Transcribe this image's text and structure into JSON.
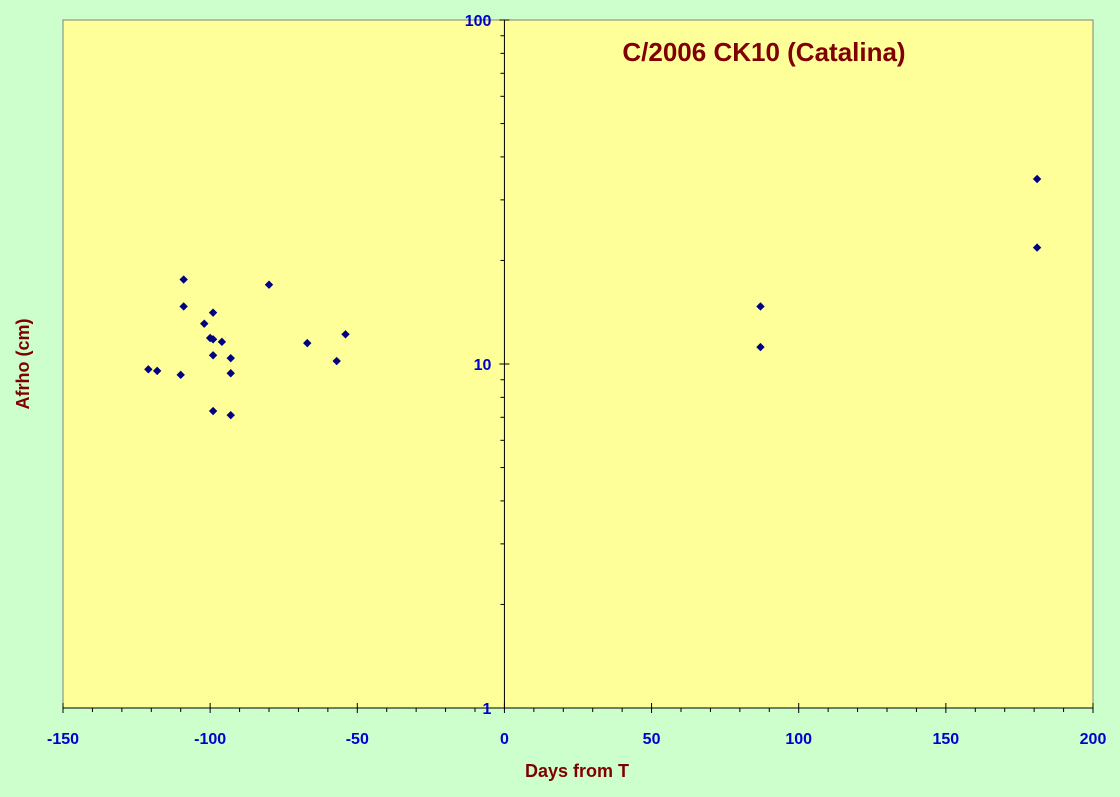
{
  "chart_data": {
    "type": "scatter",
    "title": "C/2006 CK10 (Catalina)",
    "xlabel": "Days from T",
    "ylabel": "Afrho (cm)",
    "xlim": [
      -150,
      200
    ],
    "ylim": [
      1,
      100
    ],
    "y_scale": "log",
    "x_ticks": [
      "-150",
      "-100",
      "-50",
      "0",
      "50",
      "100",
      "150",
      "200"
    ],
    "y_ticks": [
      "1",
      "10",
      "100"
    ],
    "grid": false,
    "legend": "none",
    "colors": {
      "outer_background": "#ccffcc",
      "plot_background": "#ffff99",
      "marker": "#000080",
      "title": "#800000",
      "axis_title": "#800000",
      "tick_labels": "#0000cc"
    },
    "series": [
      {
        "points": [
          [
            -121,
            9.65
          ],
          [
            -118,
            9.55
          ],
          [
            -110,
            9.3
          ],
          [
            -109,
            17.6
          ],
          [
            -109,
            14.7
          ],
          [
            -102,
            13.1
          ],
          [
            -100,
            11.9
          ],
          [
            -99,
            11.8
          ],
          [
            -99,
            14.1
          ],
          [
            -99,
            10.6
          ],
          [
            -99,
            7.3
          ],
          [
            -96,
            11.6
          ],
          [
            -93,
            10.4
          ],
          [
            -93,
            9.4
          ],
          [
            -93,
            7.1
          ],
          [
            -80,
            17.0
          ],
          [
            -67,
            11.5
          ],
          [
            -57,
            10.2
          ],
          [
            -54,
            12.2
          ],
          [
            87,
            14.7
          ],
          [
            87,
            11.2
          ],
          [
            181,
            34.5
          ],
          [
            181,
            21.8
          ]
        ]
      }
    ]
  }
}
